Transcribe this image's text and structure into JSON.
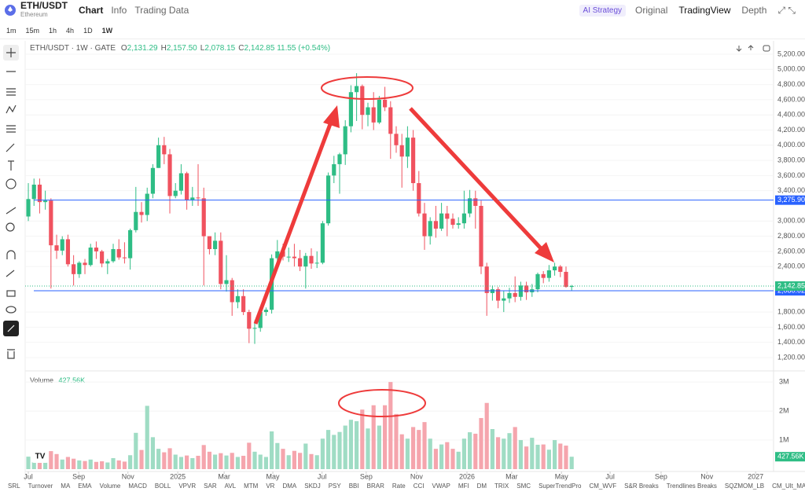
{
  "header": {
    "symbol": "ETH/USDT",
    "name": "Ethereum",
    "tabs": [
      "Chart",
      "Info",
      "Trading Data"
    ],
    "right": [
      "AI Strategy",
      "Original",
      "TradingView",
      "Depth"
    ]
  },
  "intervals": [
    "1m",
    "15m",
    "1h",
    "4h",
    "1D",
    "1W"
  ],
  "legend": {
    "title": "ETH/USDT · 1W · GATE",
    "items": [
      {
        "k": "O",
        "v": "2,131.29"
      },
      {
        "k": "H",
        "v": "2,157.50"
      },
      {
        "k": "L",
        "v": "2,078.15"
      },
      {
        "k": "C",
        "v": "2,142.85"
      }
    ],
    "change": "11.55 (+0.54%)"
  },
  "indicators": [
    "SRL",
    "Turnover",
    "MA",
    "EMA",
    "Volume",
    "MACD",
    "BOLL",
    "VPVR",
    "SAR",
    "AVL",
    "MTM",
    "VR",
    "DMA",
    "SKDJ",
    "PSY",
    "BBI",
    "BRAR",
    "Rate",
    "CCI",
    "VWAP",
    "MFI",
    "DM",
    "TRIX",
    "SMC",
    "SuperTrendPro",
    "CM_WVF",
    "S&R Breaks",
    "Trendlines Breaks",
    "SQZMOM_LB",
    "CM_Ult_MACD"
  ],
  "chart_data": {
    "type": "candlestick",
    "up_color": "#2ebd85",
    "down_color": "#f0525f",
    "up_volume_color": "#9fdcc4",
    "down_volume_color": "#f5a5ad",
    "open": [
      3060,
      3290,
      3480,
      3250,
      3270,
      2680,
      2610,
      2760,
      2430,
      2300,
      2450,
      2420,
      2650,
      2600,
      2440,
      2470,
      2630,
      2520,
      2510,
      2880,
      3120,
      3080,
      3360,
      3700,
      4000,
      3880,
      3330,
      3400,
      3630,
      3280,
      3310,
      3300,
      2800,
      2630,
      2740,
      2170,
      2220,
      1930,
      2010,
      1800,
      1580,
      1590,
      1800,
      1830,
      2510,
      2600,
      2530,
      2530,
      2510,
      2400,
      2540,
      2440,
      2450,
      2970,
      3600,
      3750,
      3880,
      4250,
      4700,
      4780,
      4400,
      4500,
      4300,
      4600,
      4500,
      4150,
      4000,
      3850,
      4100,
      3500,
      3100,
      2800,
      3000,
      2900,
      3100,
      3030,
      2950,
      2970,
      3100,
      3300,
      3200,
      2400,
      2050,
      2100,
      1950,
      1980,
      2050,
      2000,
      2150,
      2060,
      2100,
      2300,
      2250,
      2350,
      2400,
      2330,
      2131.29
    ],
    "high": [
      3500,
      3560,
      3560,
      3400,
      3300,
      2820,
      2800,
      2820,
      2550,
      2470,
      2500,
      2700,
      2730,
      2620,
      2500,
      2700,
      2760,
      2720,
      2900,
      3450,
      3250,
      3440,
      3750,
      4100,
      4110,
      3950,
      3500,
      3750,
      3650,
      3450,
      3750,
      3440,
      2800,
      2850,
      2850,
      2550,
      2250,
      2100,
      2100,
      1830,
      1690,
      1830,
      1860,
      2560,
      2750,
      2700,
      2650,
      2700,
      2620,
      2580,
      2640,
      2600,
      3000,
      3640,
      3860,
      3900,
      4330,
      4790,
      4950,
      4800,
      4560,
      4700,
      4650,
      4770,
      4580,
      4250,
      4150,
      4250,
      4200,
      3660,
      3240,
      3050,
      3200,
      3240,
      3200,
      3100,
      3050,
      3400,
      3410,
      3400,
      3270,
      2450,
      2150,
      2130,
      2080,
      2120,
      2270,
      2200,
      2200,
      2170,
      2320,
      2340,
      2420,
      2450,
      2420,
      2400,
      2157.5
    ],
    "low": [
      3000,
      3200,
      3100,
      3150,
      2110,
      2500,
      2550,
      2400,
      2150,
      2250,
      2300,
      2400,
      2500,
      2390,
      2300,
      2450,
      2490,
      2440,
      2360,
      2850,
      2980,
      3000,
      3300,
      3700,
      3750,
      3100,
      3300,
      3350,
      3150,
      3200,
      3200,
      2150,
      2560,
      2550,
      2100,
      2070,
      1750,
      1850,
      1760,
      1390,
      1380,
      1540,
      1750,
      1780,
      2420,
      2480,
      2460,
      2400,
      2340,
      2110,
      2370,
      2380,
      2430,
      2940,
      3500,
      3360,
      3740,
      4170,
      4320,
      4210,
      4250,
      4200,
      4280,
      4450,
      3820,
      3900,
      3440,
      3700,
      3400,
      3060,
      2620,
      2690,
      2780,
      2870,
      2800,
      2900,
      2900,
      2900,
      3050,
      2900,
      2300,
      1750,
      1950,
      1850,
      1800,
      1920,
      1930,
      1950,
      1960,
      2000,
      2060,
      2180,
      2200,
      2280,
      2260,
      2120,
      2078.15
    ],
    "close": [
      3290,
      3480,
      3250,
      3270,
      2680,
      2610,
      2760,
      2430,
      2300,
      2450,
      2420,
      2650,
      2600,
      2440,
      2470,
      2630,
      2520,
      2510,
      2880,
      3120,
      3080,
      3360,
      3700,
      4000,
      3880,
      3330,
      3400,
      3630,
      3280,
      3310,
      3300,
      2800,
      2630,
      2740,
      2170,
      2220,
      1930,
      2010,
      1800,
      1580,
      1590,
      1800,
      1830,
      2510,
      2600,
      2530,
      2530,
      2510,
      2400,
      2540,
      2440,
      2450,
      2970,
      3600,
      3750,
      3880,
      4250,
      4700,
      4780,
      4400,
      4500,
      4300,
      4600,
      4500,
      4150,
      4000,
      3850,
      4100,
      3500,
      3100,
      2800,
      3000,
      2900,
      3100,
      3030,
      2950,
      2970,
      3100,
      3300,
      3200,
      2400,
      2050,
      2100,
      1950,
      1980,
      2050,
      2000,
      2150,
      2060,
      2100,
      2300,
      2250,
      2350,
      2400,
      2330,
      2131.29,
      2142.85
    ],
    "volume": [
      430000,
      310000,
      380000,
      290000,
      620000,
      520000,
      330000,
      420000,
      360000,
      300000,
      280000,
      330000,
      250000,
      270000,
      230000,
      380000,
      300000,
      260000,
      480000,
      1250000,
      660000,
      2180000,
      1100000,
      700000,
      580000,
      720000,
      500000,
      420000,
      470000,
      380000,
      460000,
      830000,
      600000,
      500000,
      550000,
      470000,
      560000,
      420000,
      460000,
      910000,
      600000,
      500000,
      420000,
      1300000,
      900000,
      700000,
      480000,
      630000,
      560000,
      880000,
      520000,
      480000,
      1050000,
      1350000,
      1180000,
      1280000,
      1500000,
      1700000,
      1650000,
      2050000,
      1400000,
      2200000,
      1500000,
      2200000,
      3000000,
      1900000,
      1200000,
      1050000,
      1450000,
      1350000,
      1620000,
      1050000,
      700000,
      850000,
      930000,
      700000,
      600000,
      1050000,
      1270000,
      1220000,
      1760000,
      2280000,
      1380000,
      1100000,
      1050000,
      1240000,
      1450000,
      1000000,
      780000,
      1080000,
      840000,
      850000,
      670000,
      1000000,
      880000,
      810000,
      427560
    ],
    "xlim": [
      -0.56,
      131.67
    ],
    "xticks": [
      {
        "value": 0,
        "label": "Jul"
      },
      {
        "value": 8.9,
        "label": "Sep"
      },
      {
        "value": 17.6,
        "label": "Nov"
      },
      {
        "value": 26.4,
        "label": "2025"
      },
      {
        "value": 34.6,
        "label": "Mar"
      },
      {
        "value": 43.2,
        "label": "May"
      },
      {
        "value": 51.9,
        "label": "Jul"
      },
      {
        "value": 59.7,
        "label": "Sep"
      },
      {
        "value": 68.6,
        "label": "Nov"
      },
      {
        "value": 77.5,
        "label": "2026"
      },
      {
        "value": 85.4,
        "label": "Mar"
      },
      {
        "value": 94.2,
        "label": "May"
      },
      {
        "value": 102.8,
        "label": "Jul"
      },
      {
        "value": 111.8,
        "label": "Sep"
      },
      {
        "value": 119.9,
        "label": "Nov"
      },
      {
        "value": 128.5,
        "label": "2027"
      }
    ],
    "ylim": [
      1065,
      5345
    ],
    "yticks": [
      {
        "value": 1200,
        "label": "1,200.00"
      },
      {
        "value": 1400,
        "label": "1,400.00"
      },
      {
        "value": 1600,
        "label": "1,600.00"
      },
      {
        "value": 1800,
        "label": "1,800.00"
      },
      {
        "value": 2400,
        "label": "2,400.00"
      },
      {
        "value": 2600,
        "label": "2,600.00"
      },
      {
        "value": 2800,
        "label": "2,800.00"
      },
      {
        "value": 3000,
        "label": "3,000.00"
      },
      {
        "value": 3400,
        "label": "3,400.00"
      },
      {
        "value": 3600,
        "label": "3,600.00"
      },
      {
        "value": 3800,
        "label": "3,800.00"
      },
      {
        "value": 4000,
        "label": "4,000.00"
      },
      {
        "value": 4200,
        "label": "4,200.00"
      },
      {
        "value": 4400,
        "label": "4,400.00"
      },
      {
        "value": 4600,
        "label": "4,600.00"
      },
      {
        "value": 4800,
        "label": "4,800.00"
      },
      {
        "value": 5000,
        "label": "5,000.00"
      },
      {
        "value": 5200,
        "label": "5,200.00"
      }
    ],
    "levels": [
      {
        "value": 3275.9,
        "label": "3,275.90"
      },
      {
        "value": 2080.02,
        "label": "2,080.02"
      }
    ],
    "level_color": "#2962ff",
    "last_price": {
      "value": 2142.85,
      "label": "2,142.85"
    },
    "volume_panel": {
      "title": "Volume",
      "ylim": [
        0,
        3220000
      ],
      "yticks": [
        {
          "value": 1000000,
          "label": "1M"
        },
        {
          "value": 2000000,
          "label": "2M"
        },
        {
          "value": 3000000,
          "label": "3M"
        }
      ],
      "last": {
        "value": 427560,
        "label": "427.56K"
      }
    }
  }
}
